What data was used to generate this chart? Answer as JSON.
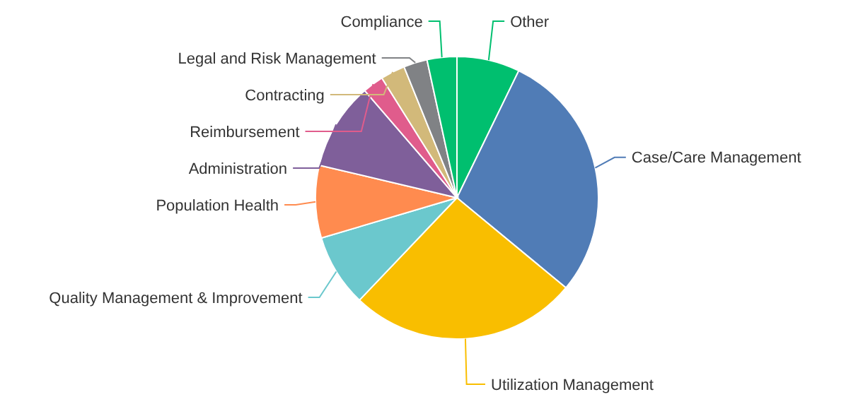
{
  "chart_data": {
    "type": "pie",
    "categories": [
      "Other",
      "Case/Care Management",
      "Utilization Management",
      "Quality Management & Improvement",
      "Population Health",
      "Administration",
      "Reimbursement",
      "Contracting",
      "Legal and Risk Management",
      "Compliance"
    ],
    "values": [
      7.2,
      28.8,
      26.1,
      8.3,
      8.3,
      10,
      2.4,
      2.8,
      2.7,
      3.4
    ],
    "colors": [
      "#00bf6f",
      "#507cb6",
      "#f9be00",
      "#6bc8cd",
      "#ff8b4f",
      "#7f5f9a",
      "#e05c8c",
      "#d2b97a",
      "#808285",
      "#00bf6f"
    ]
  }
}
